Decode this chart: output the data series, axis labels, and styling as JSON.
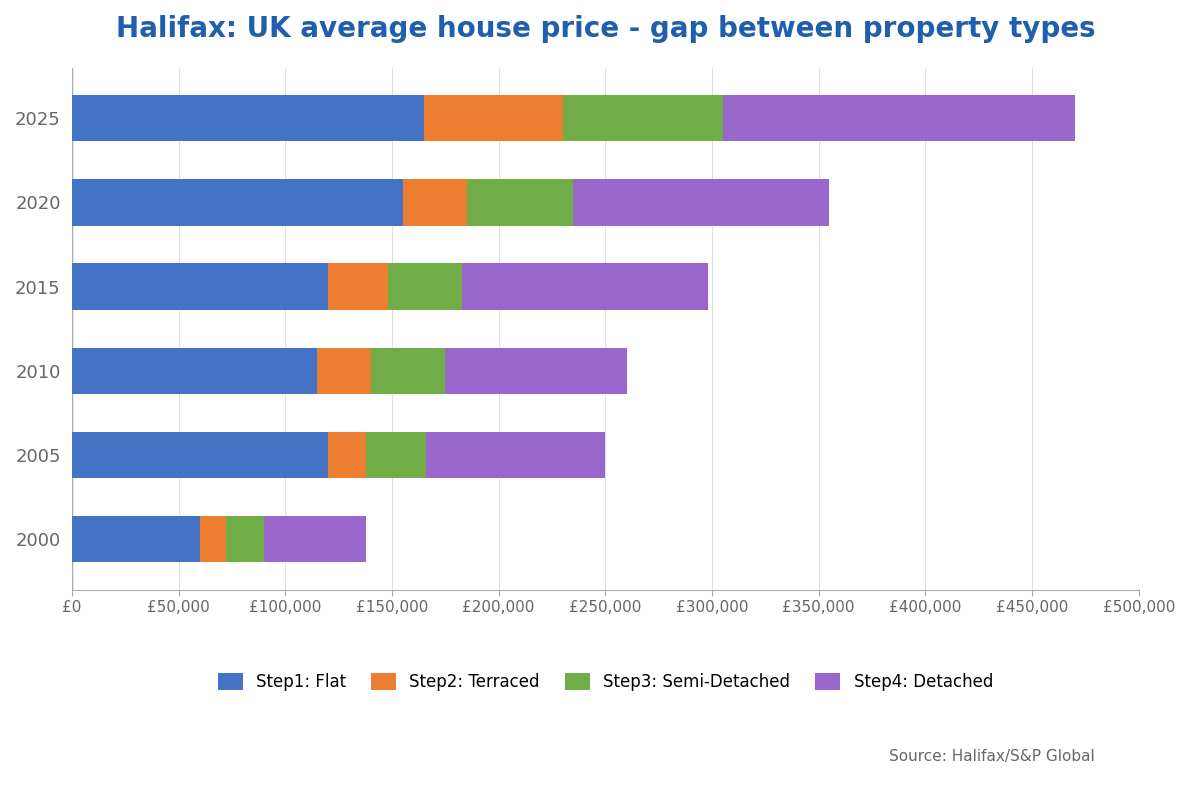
{
  "title": "Halifax: UK average house price - gap between property types",
  "years": [
    "2000",
    "2005",
    "2010",
    "2015",
    "2020",
    "2025"
  ],
  "series": {
    "Step1: Flat": [
      60000,
      120000,
      115000,
      120000,
      155000,
      165000
    ],
    "Step2: Terraced": [
      12000,
      18000,
      25000,
      28000,
      30000,
      65000
    ],
    "Step3: Semi-Detached": [
      18000,
      28000,
      35000,
      35000,
      50000,
      75000
    ],
    "Step4: Detached": [
      48000,
      84000,
      85000,
      115000,
      120000,
      165000
    ]
  },
  "colors": {
    "Step1: Flat": "#4472C4",
    "Step2: Terraced": "#ED7D31",
    "Step3: Semi-Detached": "#70AD47",
    "Step4: Detached": "#9966CC"
  },
  "xlim": [
    0,
    500000
  ],
  "xticks": [
    0,
    50000,
    100000,
    150000,
    200000,
    250000,
    300000,
    350000,
    400000,
    450000,
    500000
  ],
  "xtick_labels": [
    "£0",
    "£50,000",
    "£100,000",
    "£150,000",
    "£200,000",
    "£250,000",
    "£300,000",
    "£350,000",
    "£400,000",
    "£450,000",
    "£500,000"
  ],
  "source_text": "Source: Halifax/S&P Global",
  "title_color": "#1F5FAD",
  "title_fontsize": 20,
  "bar_height": 0.55,
  "background_color": "#FFFFFF",
  "grid_color": "#E0E0E0",
  "spine_color": "#AAAAAA",
  "tick_label_color": "#666666",
  "ytick_fontsize": 13,
  "xtick_fontsize": 11
}
